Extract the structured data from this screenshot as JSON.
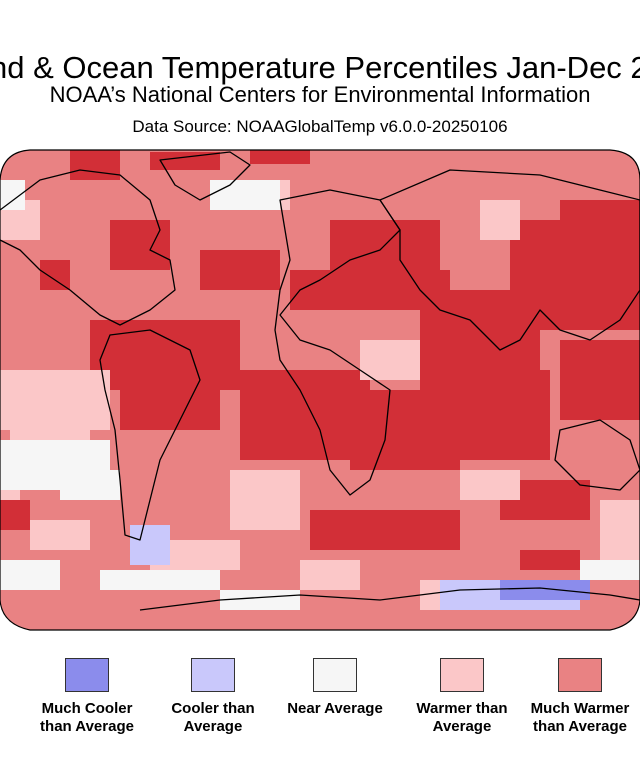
{
  "header": {
    "title": "nd & Ocean Temperature Percentiles Jan-Dec 20",
    "subtitle": "NOAA’s National Centers for Environmental Information",
    "source": "Data Source: NOAAGlobalTemp v6.0.0-20250106"
  },
  "colors": {
    "much_cooler": "#8b8cec",
    "cooler": "#c9c8fb",
    "near": "#f6f6f6",
    "warmer": "#fbc7c8",
    "much_warmer": "#e98283",
    "record_warmest": "#d22f37",
    "ocean_border": "#000000"
  },
  "legend": [
    {
      "key": "much_cooler",
      "label": "Much Cooler than Average",
      "color": "#8b8cec"
    },
    {
      "key": "cooler",
      "label": "Cooler than Average",
      "color": "#c9c8fb"
    },
    {
      "key": "near",
      "label": "Near Average",
      "color": "#f6f6f6"
    },
    {
      "key": "warmer",
      "label": "Warmer than Average",
      "color": "#fbc7c8"
    },
    {
      "key": "much_warmer",
      "label": "Much Warmer than Average",
      "color": "#e98283"
    }
  ]
}
